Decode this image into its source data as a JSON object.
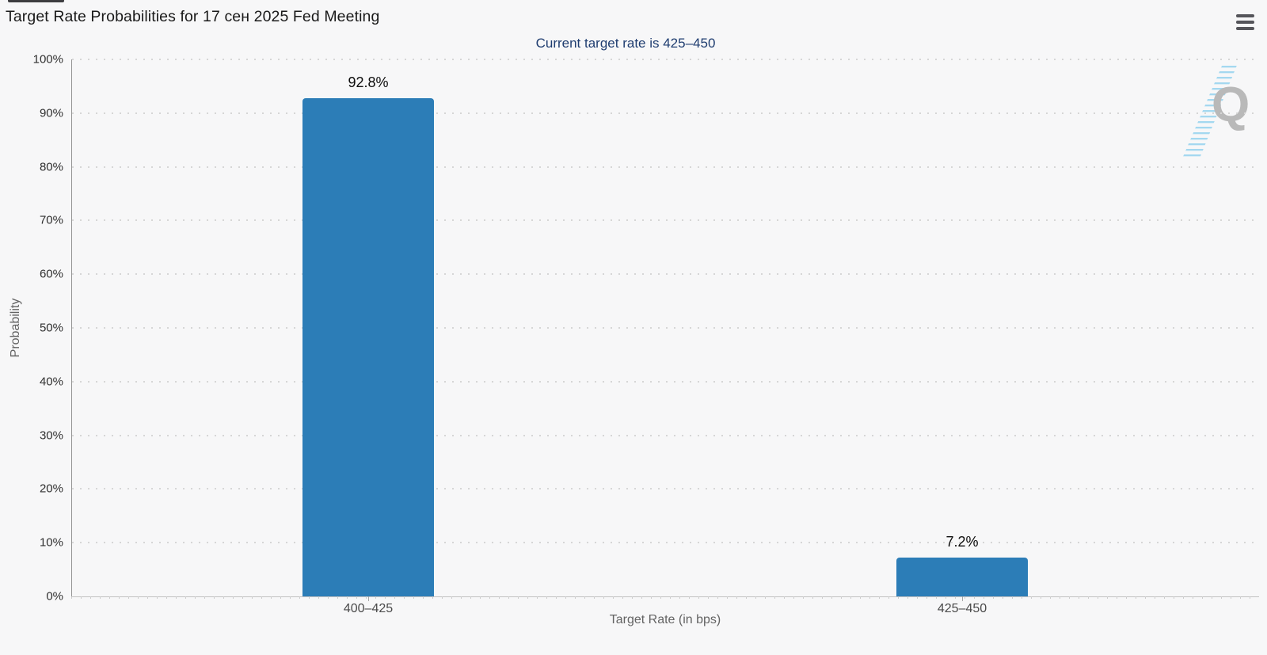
{
  "chart_data": {
    "type": "bar",
    "title": "Target Rate Probabilities for 17 сен 2025 Fed Meeting",
    "subtitle": "Current target rate is 425–450",
    "categories": [
      "400–425",
      "425–450"
    ],
    "values": [
      92.8,
      7.2
    ],
    "data_labels": [
      "92.8%",
      "7.2%"
    ],
    "xlabel": "Target Rate (in bps)",
    "ylabel": "Probability",
    "ylim": [
      0,
      100
    ],
    "ytick_step": 10,
    "ytick_labels": [
      "0%",
      "10%",
      "20%",
      "30%",
      "40%",
      "50%",
      "60%",
      "70%",
      "80%",
      "90%",
      "100%"
    ],
    "grid": "dotted-horizontal",
    "legend": "none",
    "colors": {
      "bar": "#2c7db7",
      "subtitle": "#1f3d70",
      "title": "#1a1a1a",
      "background": "#f7f7f8"
    }
  },
  "watermark": {
    "letter": "Q"
  },
  "menu": {
    "icon": "hamburger"
  }
}
